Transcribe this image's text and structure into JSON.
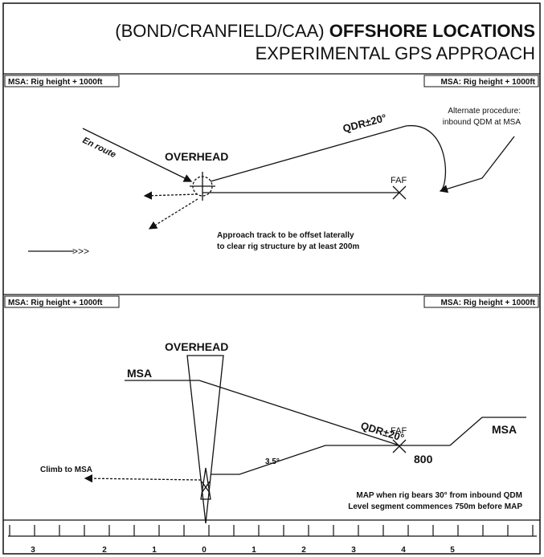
{
  "header": {
    "title_prefix": "(BOND/CRANFIELD/CAA)",
    "title_bold": "OFFSHORE LOCATIONS",
    "subtitle": "EXPERIMENTAL GPS APPROACH"
  },
  "msa_labels": {
    "plan_top_left": "MSA: Rig height + 1000ft",
    "plan_top_right": "MSA: Rig height + 1000ft",
    "profile_top_left": "MSA: Rig height + 1000ft",
    "profile_top_right": "MSA: Rig height + 1000ft"
  },
  "plan_view": {
    "en_route": "En route",
    "overhead": "OVERHEAD",
    "qdr": "QDR±20°",
    "faf": "FAF",
    "alternate_line1": "Alternate procedure:",
    "alternate_line2": "inbound QDM at MSA",
    "note_line1": "Approach track to be offset laterally",
    "note_line2": "to clear rig structure by at least 200m",
    "wind_arrow": ">>>"
  },
  "profile_view": {
    "overhead": "OVERHEAD",
    "msa_left": "MSA",
    "qdr": "QDR±20°",
    "faf": "FAF",
    "altitude": "800",
    "msa_right": "MSA",
    "angle": "3.5°",
    "climb": "Climb to MSA",
    "map_line1": "MAP when rig bears 30° from inbound QDM",
    "map_line2": "Level segment commences 750m before MAP"
  },
  "scale": {
    "labels": [
      "3",
      "2",
      "1",
      "0",
      "1",
      "2",
      "3",
      "4",
      "5"
    ]
  }
}
